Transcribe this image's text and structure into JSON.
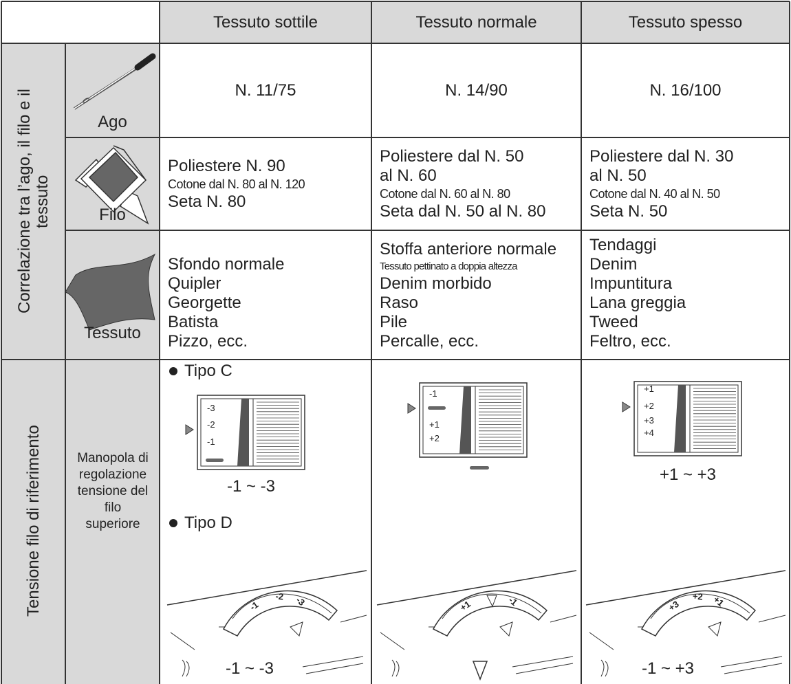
{
  "header": {
    "columns": [
      "Tessuto sottile",
      "Tessuto normale",
      "Tessuto spesso"
    ]
  },
  "correlation": {
    "label": "Correlazione tra l’ago, il filo e il tessuto",
    "rows": [
      {
        "label": "Ago",
        "cells": [
          [
            "N. 11/75"
          ],
          [
            "N. 14/90"
          ],
          [
            "N. 16/100"
          ]
        ]
      },
      {
        "label": "Filo",
        "cells": [
          [
            "Poliestere N. 90",
            "Cotone dal N. 80 al N. 120",
            "Seta N. 80"
          ],
          [
            "Poliestere dal N. 50",
            "al N. 60",
            "Cotone dal N. 60 al N. 80",
            "Seta dal N. 50 al N. 80"
          ],
          [
            "Poliestere dal N. 30",
            "al N. 50",
            "Cotone dal N. 40 al N. 50",
            "Seta N. 50"
          ]
        ]
      },
      {
        "label": "Tessuto",
        "cells": [
          [
            "Sfondo normale",
            "Quipler",
            "Georgette",
            "Batista",
            "Pizzo, ecc."
          ],
          [
            "Stoffa anteriore normale",
            "Tessuto pettinato a doppia altezza",
            "Denim morbido",
            "Raso",
            "Pile",
            "Percalle, ecc."
          ],
          [
            "Tendaggi",
            "Denim",
            "Impuntitura",
            "Lana greggia",
            "Tweed",
            "Feltro, ecc."
          ]
        ]
      }
    ]
  },
  "tension": {
    "label": "Tensione filo di riferimento",
    "dial_label": "Manopola di regolazione tensione del filo superiore",
    "type_c": {
      "label": "Tipo C",
      "columns": [
        {
          "scale": [
            "-3",
            "-2",
            "-1"
          ],
          "range": "-1 ~ -3"
        },
        {
          "scale": [
            "-1",
            "+1",
            "+2"
          ]
        },
        {
          "scale": [
            "+1",
            "+2",
            "+3",
            "+4"
          ],
          "range": "+1 ~ +3"
        }
      ]
    },
    "type_d": {
      "label": "Tipo D",
      "columns": [
        {
          "dial": [
            "-1",
            "-2",
            "-3"
          ],
          "range": "-1 ~ -3"
        },
        {
          "dial": [
            "+1",
            "-1"
          ]
        },
        {
          "dial": [
            "+3",
            "+2",
            "+1"
          ],
          "range": "-1 ~ +3"
        }
      ]
    }
  }
}
